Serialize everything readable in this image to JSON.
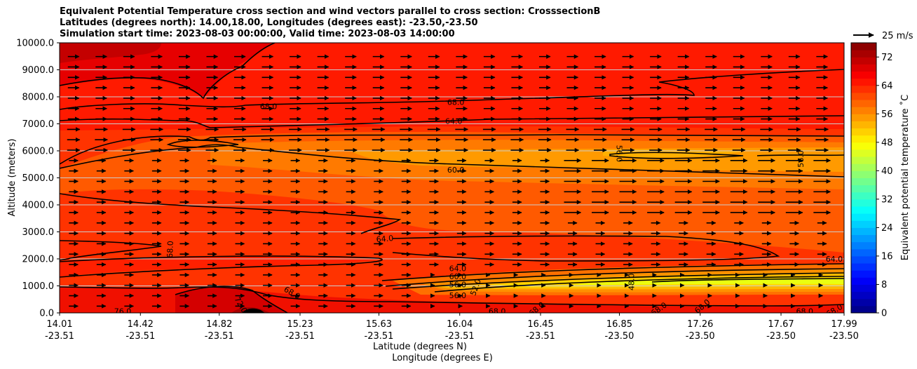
{
  "chart_data": {
    "type": "heatmap",
    "title_lines": [
      "Equivalent Potential Temperature cross section and wind vectors parallel to cross section: CrosssectionB",
      "Latitudes (degrees north): 14.00,18.00, Longitudes (degrees east): -23.50,-23.50",
      "Simulation start time: 2023-08-03 00:00:00, Valid time: 2023-08-03 14:00:00"
    ],
    "xlabel_lines": [
      "Latitude (degrees N)",
      "Longitude (degrees E)"
    ],
    "ylabel": "Altitude (meters)",
    "ylim": [
      0,
      10000
    ],
    "xlim": [
      14.01,
      17.99
    ],
    "y_ticks": [
      "0.0",
      "1000.0",
      "2000.0",
      "3000.0",
      "4000.0",
      "5000.0",
      "6000.0",
      "7000.0",
      "8000.0",
      "9000.0",
      "10000.0"
    ],
    "x_ticks": [
      {
        "lat": "14.01",
        "lon": "-23.51"
      },
      {
        "lat": "14.42",
        "lon": "-23.51"
      },
      {
        "lat": "14.82",
        "lon": "-23.51"
      },
      {
        "lat": "15.23",
        "lon": "-23.51"
      },
      {
        "lat": "15.63",
        "lon": "-23.51"
      },
      {
        "lat": "16.04",
        "lon": "-23.51"
      },
      {
        "lat": "16.45",
        "lon": "-23.51"
      },
      {
        "lat": "16.85",
        "lon": "-23.50"
      },
      {
        "lat": "17.26",
        "lon": "-23.50"
      },
      {
        "lat": "17.67",
        "lon": "-23.50"
      },
      {
        "lat": "17.99",
        "lon": "-23.50"
      }
    ],
    "colorbar": {
      "label": "Equivalent potential temperature ˚C",
      "min": 0,
      "max": 76,
      "step": 2,
      "ticks": [
        "0",
        "8",
        "16",
        "24",
        "32",
        "40",
        "48",
        "56",
        "64",
        "72"
      ]
    },
    "quiver_key": "25 m/s",
    "contour_labels": [
      {
        "text": "68.0",
        "lat": 15.07,
        "alt": 7650,
        "rot": 0
      },
      {
        "text": "68.0",
        "lat": 16.02,
        "alt": 7800,
        "rot": 0
      },
      {
        "text": "64.0",
        "lat": 16.01,
        "alt": 7100,
        "rot": 0
      },
      {
        "text": "60.0",
        "lat": 16.02,
        "alt": 5300,
        "rot": 0
      },
      {
        "text": "64.0",
        "lat": 15.66,
        "alt": 2750,
        "rot": -5
      },
      {
        "text": "64.0",
        "lat": 16.03,
        "alt": 1650,
        "rot": 0
      },
      {
        "text": "60.0",
        "lat": 16.03,
        "alt": 1350,
        "rot": 0
      },
      {
        "text": "56.0",
        "lat": 16.03,
        "alt": 1050,
        "rot": 0
      },
      {
        "text": "56.0",
        "lat": 16.03,
        "alt": 650,
        "rot": 0
      },
      {
        "text": "52.0",
        "lat": 16.12,
        "alt": 950,
        "rot": -70
      },
      {
        "text": "48.0",
        "lat": 16.91,
        "alt": 1150,
        "rot": -90
      },
      {
        "text": "56.0",
        "lat": 16.85,
        "alt": 5900,
        "rot": 90
      },
      {
        "text": "56.0",
        "lat": 17.77,
        "alt": 5700,
        "rot": -90
      },
      {
        "text": "68.0",
        "lat": 14.57,
        "alt": 2350,
        "rot": -88
      },
      {
        "text": "68.0",
        "lat": 15.19,
        "alt": 750,
        "rot": 30
      },
      {
        "text": "72.0",
        "lat": 14.93,
        "alt": 300,
        "rot": 60
      },
      {
        "text": "76.0",
        "lat": 14.33,
        "alt": 60,
        "rot": 0
      },
      {
        "text": "68.0",
        "lat": 16.23,
        "alt": 60,
        "rot": 0
      },
      {
        "text": "68.0",
        "lat": 16.43,
        "alt": 150,
        "rot": -40
      },
      {
        "text": "68.0",
        "lat": 17.05,
        "alt": 150,
        "rot": -35
      },
      {
        "text": "68.0",
        "lat": 17.27,
        "alt": 250,
        "rot": -40
      },
      {
        "text": "68.0",
        "lat": 17.79,
        "alt": 60,
        "rot": 0
      },
      {
        "text": "68.0",
        "lat": 17.94,
        "alt": 100,
        "rot": -30
      },
      {
        "text": "64.0",
        "lat": 17.94,
        "alt": 2000,
        "rot": 0
      }
    ]
  }
}
